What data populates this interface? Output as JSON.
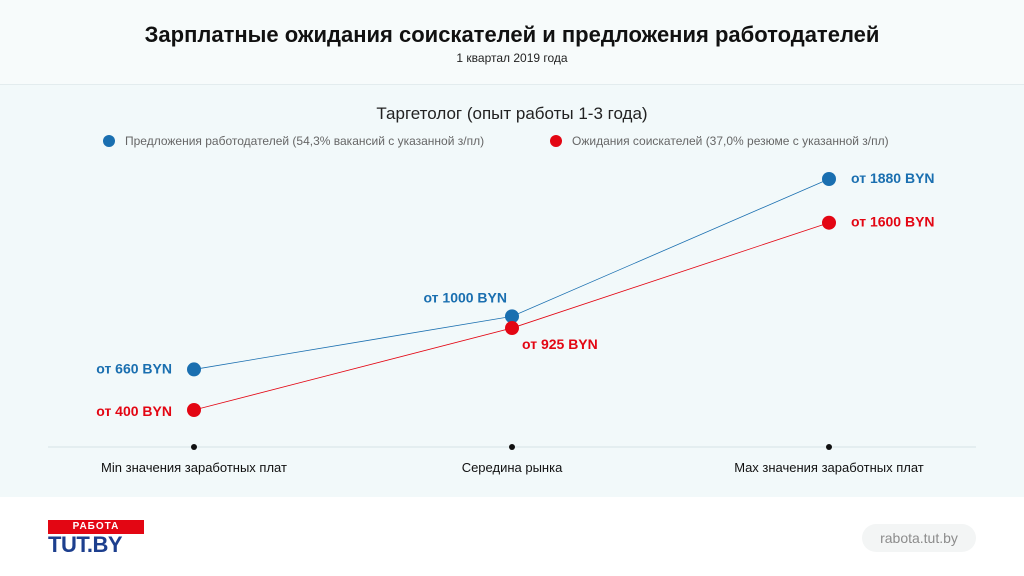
{
  "header": {
    "title": "Зарплатные ожидания соискателей и предложения работодателей",
    "subtitle": "1 квартал 2019 года"
  },
  "chart_data": {
    "type": "line",
    "title": "Таргетолог (опыт работы 1-3 года)",
    "categories": [
      "Min значения заработных плат",
      "Середина рынка",
      "Max значения заработных плат"
    ],
    "series": [
      {
        "name": "Предложения работодателей (54,3% вакансий с указанной з/пл)",
        "values": [
          660,
          1000,
          1880
        ],
        "labels": [
          "от 660 BYN",
          "от 1000 BYN",
          "от 1880 BYN"
        ],
        "color": "#1a6fb0"
      },
      {
        "name": "Ожидания соискателей (37,0% резюме с указанной з/пл)",
        "values": [
          400,
          925,
          1600
        ],
        "labels": [
          "от 400 BYN",
          "от 925 BYN",
          "от 1600 BYN"
        ],
        "color": "#e30613"
      }
    ],
    "grid": false,
    "legend": "top"
  },
  "footer": {
    "logo_top": "РАБОТА",
    "logo_bottom": "TUT.BY",
    "site": "rabota.tut.by"
  }
}
